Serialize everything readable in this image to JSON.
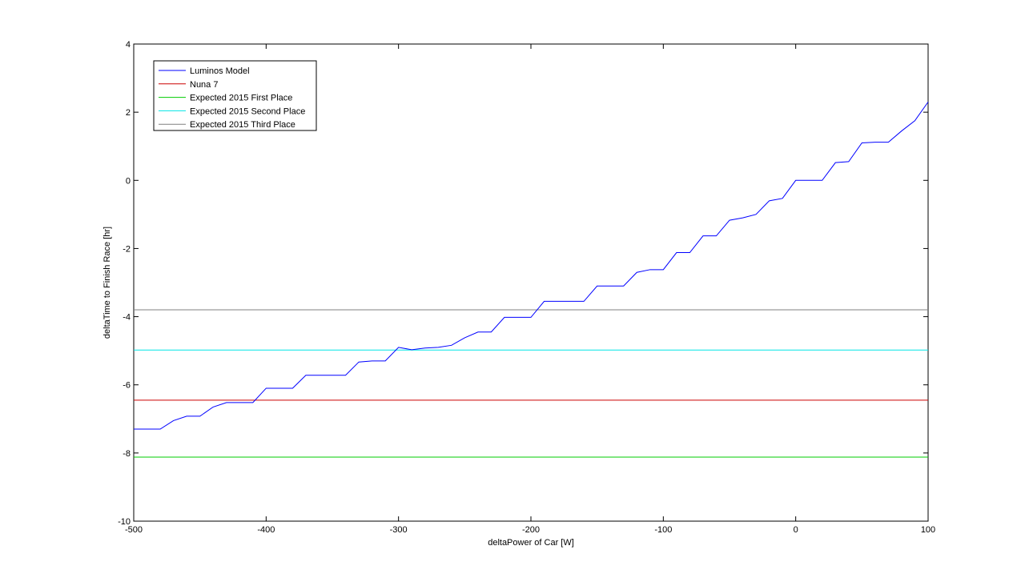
{
  "chart_data": {
    "type": "line",
    "title": "",
    "xlabel": "deltaPower of Car [W]",
    "ylabel": "deltaTime to Finish Race [hr]",
    "xlim": [
      -500,
      100
    ],
    "ylim": [
      -10,
      4
    ],
    "xticks": [
      -500,
      -400,
      -300,
      -200,
      -100,
      0,
      100
    ],
    "yticks": [
      -10,
      -8,
      -6,
      -4,
      -2,
      0,
      2,
      4
    ],
    "xtick_labels": [
      "-500",
      "-400",
      "-300",
      "-200",
      "-100",
      "0",
      "100"
    ],
    "ytick_labels": [
      "-10",
      "-8",
      "-6",
      "-4",
      "-2",
      "0",
      "2",
      "4"
    ],
    "grid": false,
    "legend_position": "top-left",
    "series": [
      {
        "name": "Luminos Model",
        "color": "#0000ff",
        "x": [
          -500,
          -480,
          -470,
          -460,
          -450,
          -440,
          -430,
          -420,
          -410,
          -400,
          -390,
          -380,
          -370,
          -360,
          -350,
          -340,
          -330,
          -320,
          -310,
          -300,
          -290,
          -280,
          -270,
          -260,
          -250,
          -240,
          -230,
          -220,
          -210,
          -200,
          -190,
          -180,
          -170,
          -160,
          -150,
          -140,
          -130,
          -120,
          -110,
          -100,
          -90,
          -80,
          -70,
          -60,
          -50,
          -40,
          -30,
          -20,
          -10,
          0,
          10,
          20,
          30,
          40,
          50,
          60,
          70,
          80,
          90,
          100
        ],
        "y": [
          -7.3,
          -7.3,
          -7.05,
          -6.92,
          -6.92,
          -6.65,
          -6.52,
          -6.52,
          -6.52,
          -6.1,
          -6.1,
          -6.1,
          -5.72,
          -5.72,
          -5.72,
          -5.72,
          -5.33,
          -5.3,
          -5.3,
          -4.9,
          -4.97,
          -4.92,
          -4.9,
          -4.84,
          -4.62,
          -4.45,
          -4.45,
          -4.02,
          -4.02,
          -4.02,
          -3.55,
          -3.55,
          -3.55,
          -3.55,
          -3.1,
          -3.1,
          -3.1,
          -2.7,
          -2.62,
          -2.62,
          -2.12,
          -2.12,
          -1.63,
          -1.63,
          -1.17,
          -1.1,
          -1.0,
          -0.6,
          -0.53,
          0,
          0,
          0,
          0.52,
          0.55,
          1.1,
          1.12,
          1.12,
          1.45,
          1.75,
          2.3
        ]
      },
      {
        "name": "Nuna 7",
        "color": "#cc0000",
        "x": [
          -500,
          100
        ],
        "y": [
          -6.45,
          -6.45
        ]
      },
      {
        "name": "Expected 2015 First Place",
        "color": "#00cc00",
        "x": [
          -500,
          100
        ],
        "y": [
          -8.12,
          -8.12
        ]
      },
      {
        "name": "Expected 2015 Second Place",
        "color": "#00e5e5",
        "x": [
          -500,
          100
        ],
        "y": [
          -4.98,
          -4.98
        ]
      },
      {
        "name": "Expected 2015 Third Place",
        "color": "#808080",
        "x": [
          -500,
          100
        ],
        "y": [
          -3.8,
          -3.8
        ]
      }
    ]
  }
}
